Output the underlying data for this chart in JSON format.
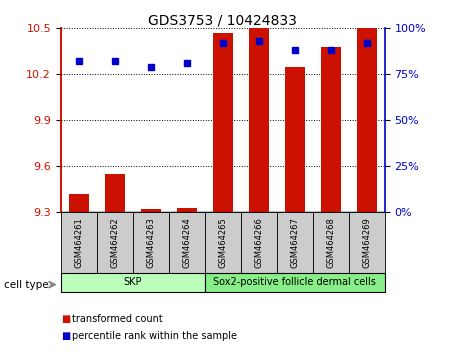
{
  "title": "GDS3753 / 10424833",
  "samples": [
    "GSM464261",
    "GSM464262",
    "GSM464263",
    "GSM464264",
    "GSM464265",
    "GSM464266",
    "GSM464267",
    "GSM464268",
    "GSM464269"
  ],
  "transformed_count": [
    9.42,
    9.55,
    9.32,
    9.33,
    10.47,
    10.5,
    10.25,
    10.38,
    10.5
  ],
  "percentile_rank": [
    82,
    82,
    79,
    81,
    92,
    93,
    88,
    88,
    92
  ],
  "ylim_left": [
    9.3,
    10.5
  ],
  "yticks_left": [
    9.3,
    9.6,
    9.9,
    10.2,
    10.5
  ],
  "ylim_right": [
    0,
    100
  ],
  "yticks_right": [
    0,
    25,
    50,
    75,
    100
  ],
  "bar_color": "#cc1100",
  "dot_color": "#0000cc",
  "bar_width": 0.55,
  "cell_types": [
    {
      "label": "SKP",
      "start": 0,
      "end": 4,
      "color": "#bbffbb"
    },
    {
      "label": "Sox2-positive follicle dermal cells",
      "start": 4,
      "end": 9,
      "color": "#88ee88"
    }
  ],
  "cell_type_label": "cell type",
  "legend_items": [
    {
      "color": "#cc1100",
      "label": "transformed count"
    },
    {
      "color": "#0000cc",
      "label": "percentile rank within the sample"
    }
  ],
  "background_color": "#ffffff",
  "left_axis_color": "#cc1100",
  "right_axis_color": "#0000cc",
  "sample_box_color": "#cccccc",
  "n_samples": 9
}
